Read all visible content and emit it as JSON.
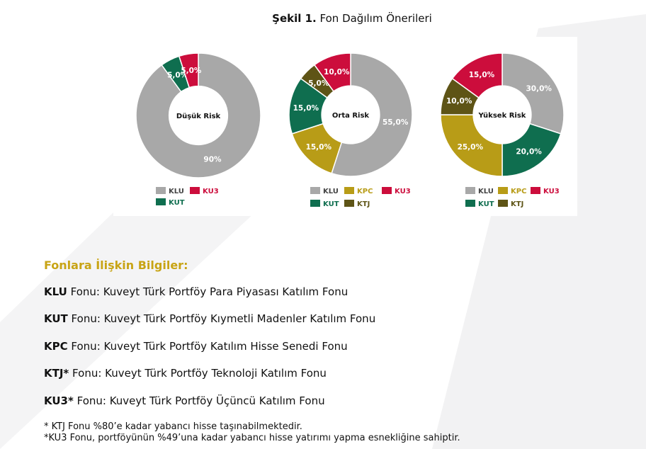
{
  "figure": {
    "title_bold": "Şekil 1.",
    "title_rest": " Fon Dağılım Önerileri"
  },
  "colors": {
    "KLU": "#a8a8a8",
    "KUT": "#0f6e4f",
    "KPC": "#b89c17",
    "KTJ": "#5e5416",
    "KU3": "#cc0d3c"
  },
  "chart_data": [
    {
      "type": "pie",
      "subtype": "donut",
      "center_label": "Düşük Risk",
      "categories": [
        "KLU",
        "KUT",
        "KU3"
      ],
      "values": [
        90,
        5,
        5
      ],
      "labels": [
        "90%",
        "5,0%",
        "5,0%"
      ],
      "legend": [
        "KLU",
        "KU3",
        "KUT"
      ],
      "legend_placement": "bottom"
    },
    {
      "type": "pie",
      "subtype": "donut",
      "center_label": "Orta Risk",
      "categories": [
        "KLU",
        "KPC",
        "KUT",
        "KTJ",
        "KU3"
      ],
      "values": [
        55,
        15,
        15,
        5,
        10
      ],
      "labels": [
        "55,0%",
        "15,0%",
        "15,0%",
        "5,0%",
        "10,0%"
      ],
      "legend": [
        "KLU",
        "KPC",
        "KU3",
        "KUT",
        "KTJ"
      ],
      "legend_placement": "bottom"
    },
    {
      "type": "pie",
      "subtype": "donut",
      "center_label": "Yüksek Risk",
      "categories": [
        "KLU",
        "KUT",
        "KPC",
        "KTJ",
        "KU3"
      ],
      "values": [
        30,
        20,
        25,
        10,
        15
      ],
      "labels": [
        "30,0%",
        "20,0%",
        "25,0%",
        "10,0%",
        "15,0%"
      ],
      "legend": [
        "KLU",
        "KPC",
        "KU3",
        "KUT",
        "KTJ"
      ],
      "legend_placement": "bottom"
    }
  ],
  "info": {
    "heading": "Fonlara İlişkin Bilgiler:",
    "funds": [
      {
        "code": "KLU",
        "text": " Fonu: Kuveyt Türk Portföy Para Piyasası Katılım Fonu"
      },
      {
        "code": "KUT",
        "text": " Fonu: Kuveyt Türk Portföy Kıymetli Madenler Katılım Fonu"
      },
      {
        "code": "KPC",
        "text": " Fonu: Kuveyt Türk Portföy Katılım Hisse Senedi Fonu"
      },
      {
        "code": "KTJ*",
        "text": " Fonu: Kuveyt Türk Portföy Teknoloji Katılım Fonu"
      },
      {
        "code": "KU3*",
        "text": " Fonu: Kuveyt Türk Portföy Üçüncü Katılım Fonu"
      }
    ],
    "notes": [
      "* KTJ Fonu %80’e kadar yabancı hisse taşınabilmektedir.",
      "*KU3 Fonu, portföyünün %49’una kadar yabancı hisse yatırımı yapma esnekliğine sahiptir."
    ]
  }
}
